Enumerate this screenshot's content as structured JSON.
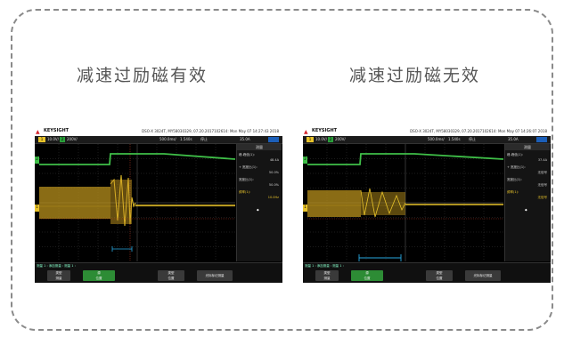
{
  "left": {
    "title": "减速过励磁有效",
    "brand": "KEYSIGHT",
    "info": "DSO-X 3024T, MY58030329, 07.20.2017102614: Mon May 07 14:27:43 2018",
    "topbar": {
      "ch1": "1",
      "v1": "10.0V/",
      "ch2": "2",
      "v2": "200V/",
      "time": "500.0ms/",
      "delay": "1.540s",
      "stop": "停止",
      "trig": "35.0A"
    },
    "panel": {
      "header": "测量",
      "rows": [
        {
          "label": "峰-峰值(1):",
          "value": ""
        },
        {
          "label": "",
          "value": "48.4A"
        },
        {
          "label": "+ 宽度比(1):",
          "value": ""
        },
        {
          "label": "",
          "value": "50.0%"
        },
        {
          "label": "宽度比(1):",
          "value": ""
        },
        {
          "label": "",
          "value": "50.0%"
        },
        {
          "label": "频率(1):",
          "value": "10.0Hz"
        }
      ]
    },
    "bottom_label": "测量 1 : 添加测量 : 测量 1 :",
    "softkeys": [
      {
        "line1": "类型",
        "line2": "测量",
        "active": false
      },
      {
        "line1": "源",
        "line2": "位置",
        "active": true
      },
      {
        "line1": "类型",
        "line2": "位置",
        "active": false
      },
      {
        "line1": "光标标记测量",
        "line2": "",
        "active": false
      }
    ]
  },
  "right": {
    "title": "减速过励磁无效",
    "brand": "KEYSIGHT",
    "info": "DSO-X 3024T, MY58030329, 07.20.2017102614: Mon May 07 14:26:07 2018",
    "topbar": {
      "ch1": "1",
      "v1": "10.0V/",
      "ch2": "2",
      "v2": "200V/",
      "time": "500.0ms/",
      "delay": "1.540s",
      "stop": "停止",
      "trig": "35.0A"
    },
    "panel": {
      "header": "测量",
      "rows": [
        {
          "label": "峰-峰值(1):",
          "value": ""
        },
        {
          "label": "",
          "value": "37.4A"
        },
        {
          "label": "+ 宽度比(1):",
          "value": ""
        },
        {
          "label": "",
          "value": "无信号"
        },
        {
          "label": "宽度比(1):",
          "value": ""
        },
        {
          "label": "",
          "value": "无信号"
        },
        {
          "label": "频率(1):",
          "value": "无信号"
        }
      ]
    },
    "bottom_label": "测量 1 : 添加测量 : 测量 1 :",
    "softkeys": [
      {
        "line1": "类型",
        "line2": "测量",
        "active": false
      },
      {
        "line1": "源",
        "line2": "位置",
        "active": true
      },
      {
        "line1": "类型",
        "line2": "位置",
        "active": false
      },
      {
        "line1": "光标标记测量",
        "line2": "",
        "active": false
      }
    ]
  },
  "colors": {
    "ch1": "#e8c32a",
    "ch2": "#3fbf48",
    "grid": "#444444",
    "cursor": "#29a8e0",
    "accent": "#1c5fb8"
  },
  "icons": {
    "brand": "keysight-wave-icon"
  }
}
